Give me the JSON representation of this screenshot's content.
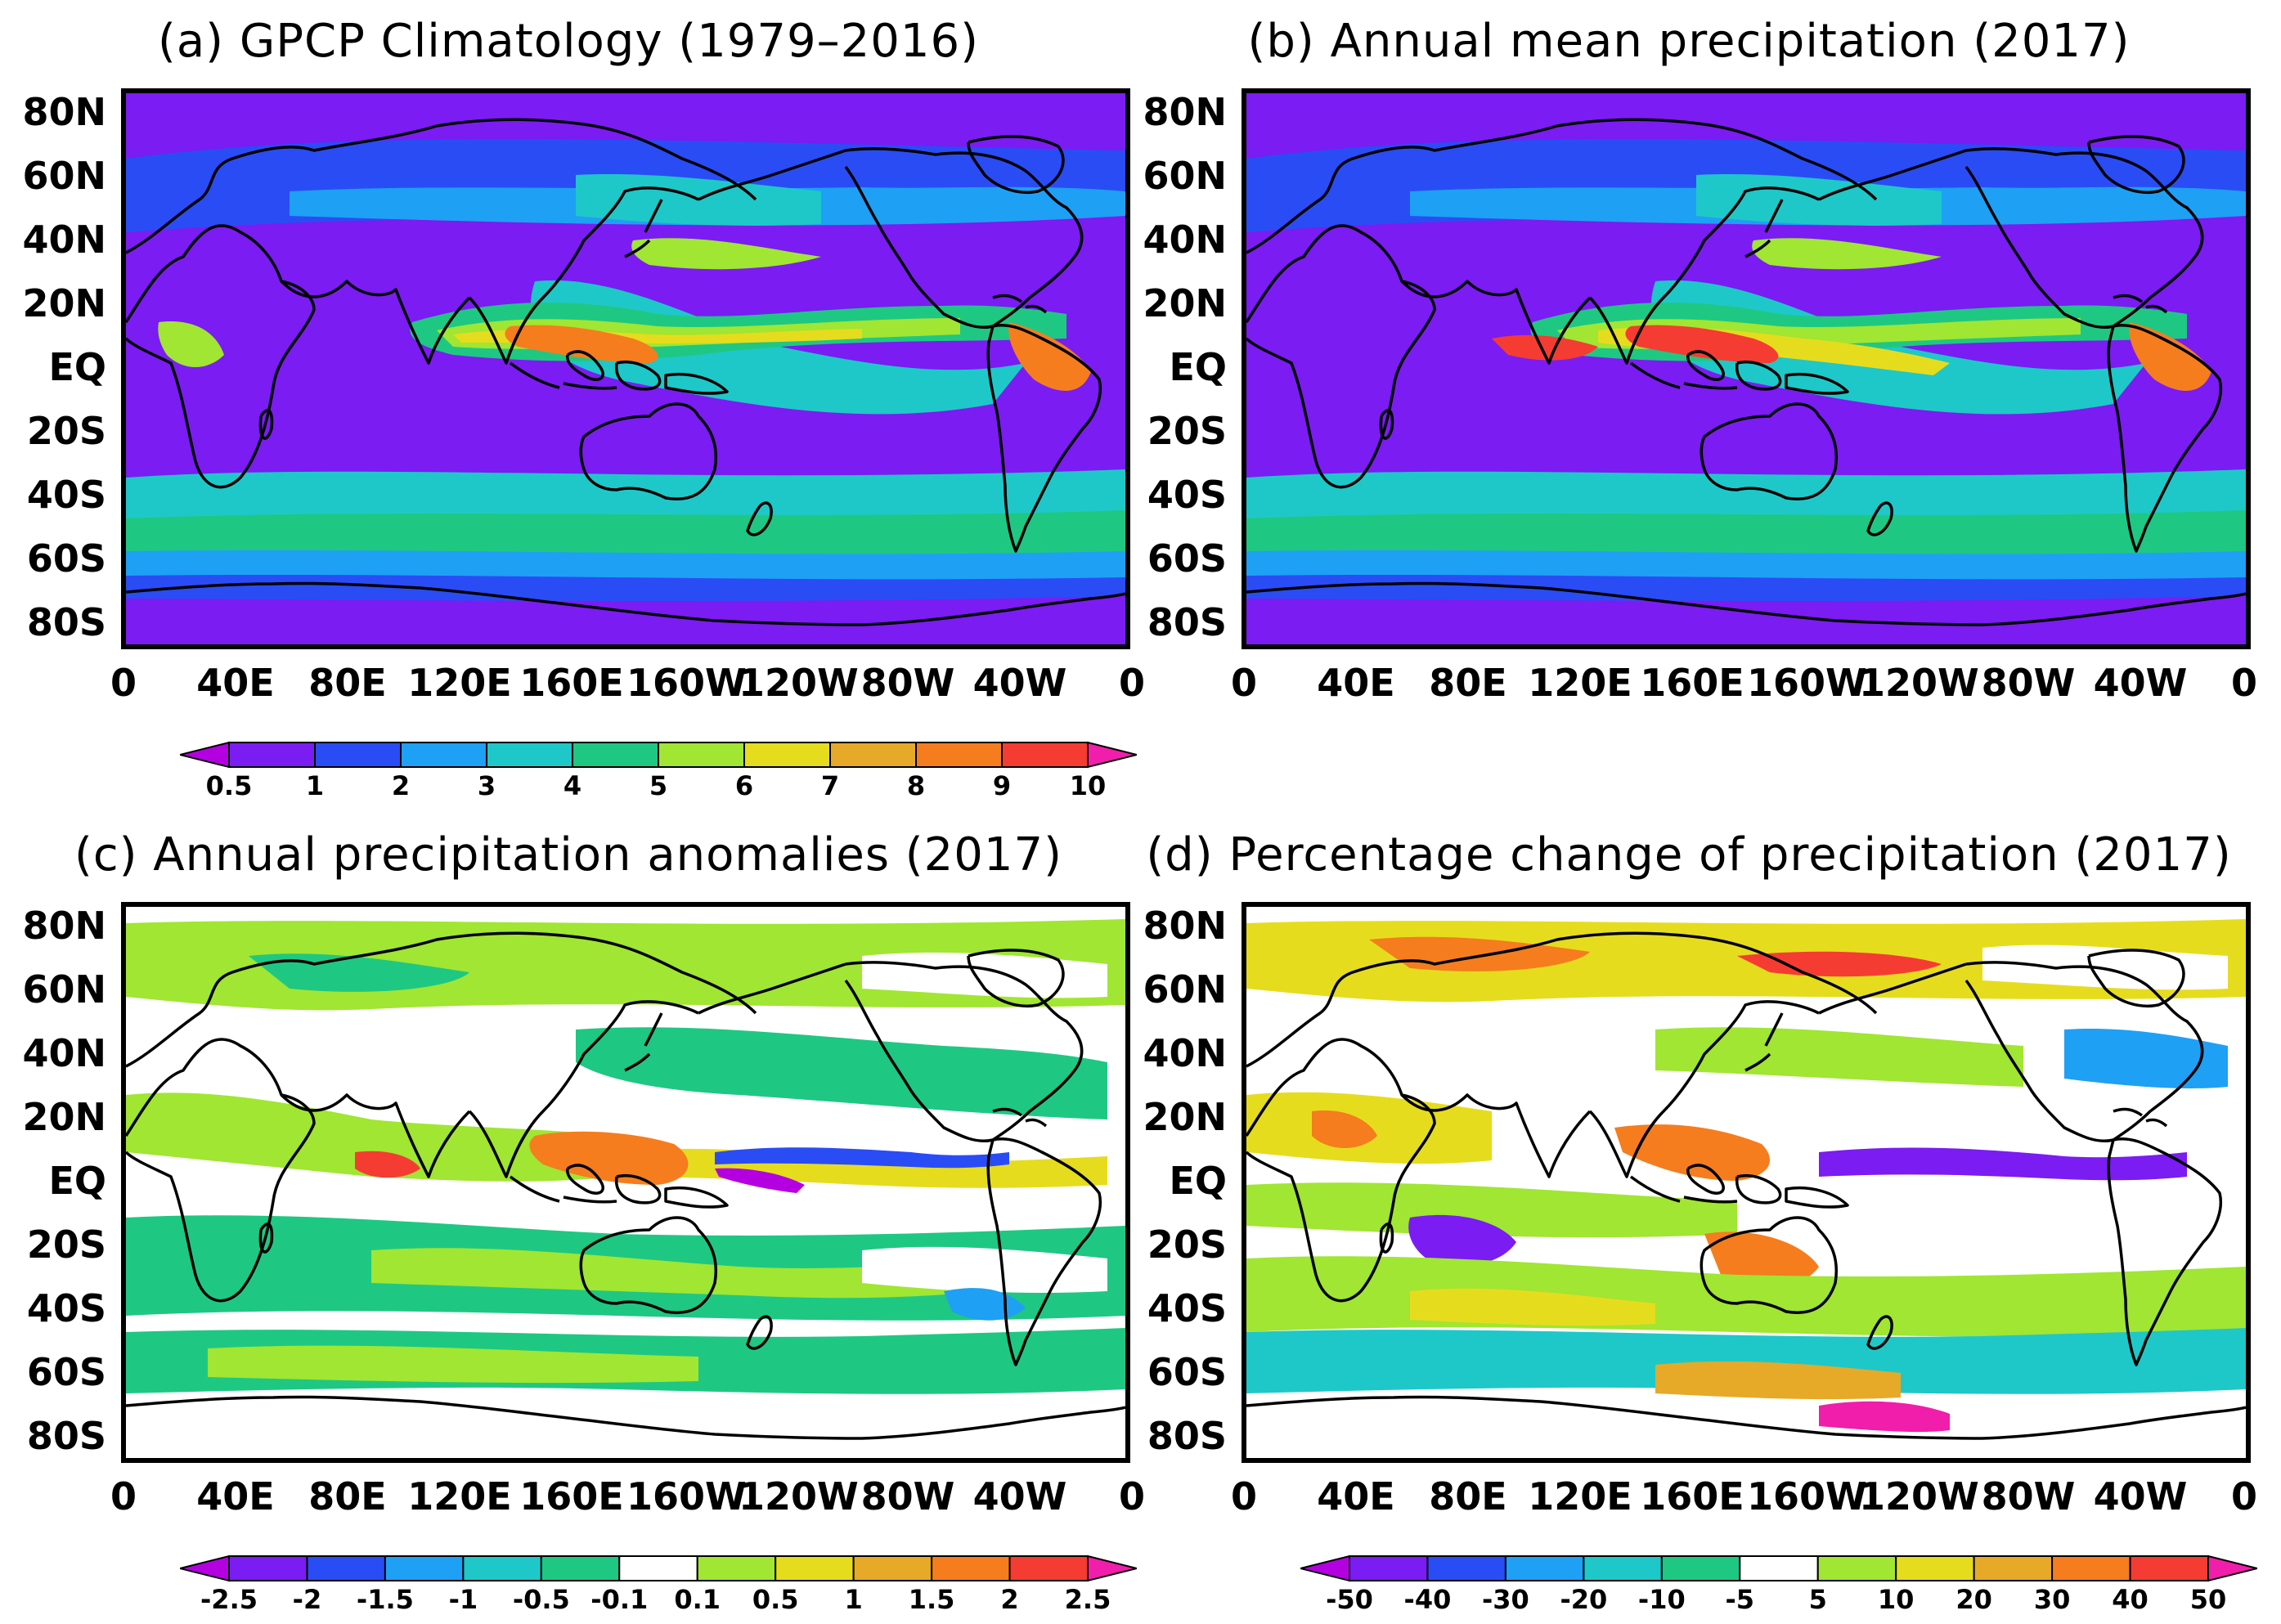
{
  "figure": {
    "latitude_labels": [
      "80N",
      "60N",
      "40N",
      "20N",
      "EQ",
      "20S",
      "40S",
      "60S",
      "80S"
    ],
    "longitude_labels": [
      "0",
      "40E",
      "80E",
      "120E",
      "160E",
      "160W",
      "120W",
      "80W",
      "40W",
      "0"
    ]
  },
  "panels": [
    {
      "id": "a",
      "title": "(a) GPCP Climatology (1979–2016)",
      "has_colorbar": true,
      "colorbar": {
        "ticks": [
          "0.5",
          "1",
          "2",
          "3",
          "4",
          "5",
          "6",
          "7",
          "8",
          "9",
          "10"
        ],
        "colors": [
          "#b400e0",
          "#7a1cf2",
          "#2a4cf5",
          "#1ea0f5",
          "#1ec8c8",
          "#1ec882",
          "#a0e632",
          "#e6dc1e",
          "#e6aa28",
          "#f57d1e",
          "#f53c32",
          "#f01eaa"
        ]
      }
    },
    {
      "id": "b",
      "title": "(b) Annual mean precipitation (2017)",
      "has_colorbar": false
    },
    {
      "id": "c",
      "title": "(c) Annual precipitation anomalies (2017)",
      "has_colorbar": true,
      "colorbar": {
        "ticks": [
          "-2.5",
          "-2",
          "-1.5",
          "-1",
          "-0.5",
          "-0.1",
          "0.1",
          "0.5",
          "1",
          "1.5",
          "2",
          "2.5"
        ],
        "colors": [
          "#b400e0",
          "#7a1cf2",
          "#2a4cf5",
          "#1ea0f5",
          "#1ec8c8",
          "#1ec882",
          "#ffffff",
          "#a0e632",
          "#e6dc1e",
          "#e6aa28",
          "#f57d1e",
          "#f53c32",
          "#f01eaa"
        ]
      }
    },
    {
      "id": "d",
      "title": "(d) Percentage change of precipitation (2017)",
      "has_colorbar": true,
      "colorbar": {
        "ticks": [
          "-50",
          "-40",
          "-30",
          "-20",
          "-10",
          "-5",
          "5",
          "10",
          "20",
          "30",
          "40",
          "50"
        ],
        "colors": [
          "#b400e0",
          "#7a1cf2",
          "#2a4cf5",
          "#1ea0f5",
          "#1ec8c8",
          "#1ec882",
          "#ffffff",
          "#a0e632",
          "#e6dc1e",
          "#e6aa28",
          "#f57d1e",
          "#f53c32",
          "#f01eaa"
        ]
      }
    }
  ]
}
